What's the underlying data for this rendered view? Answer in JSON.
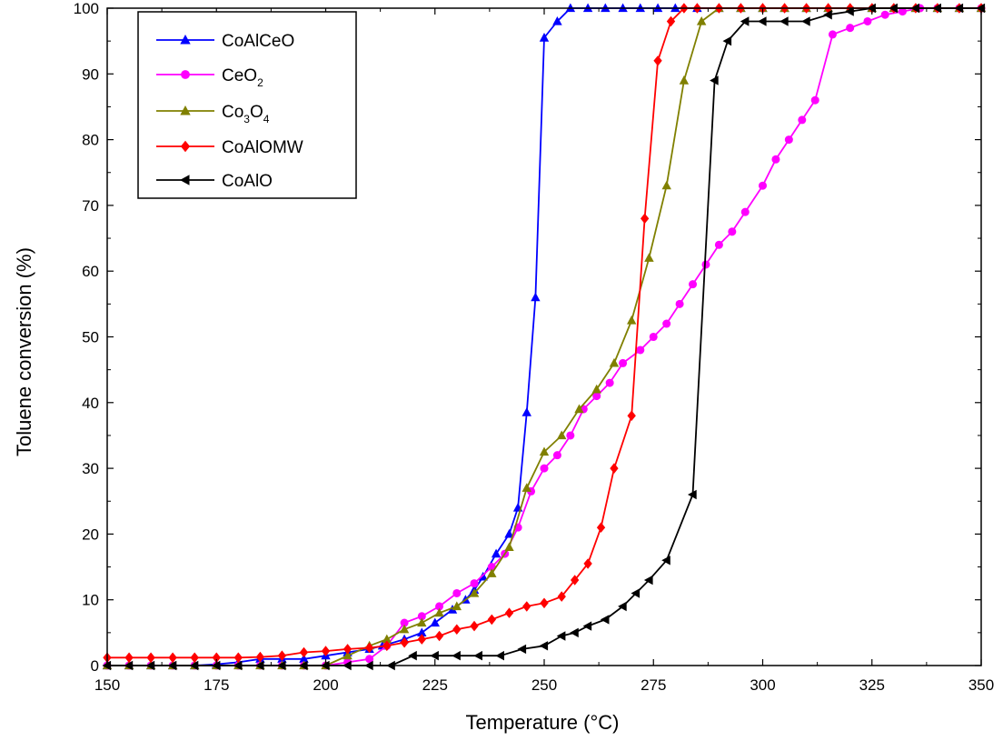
{
  "chart_data": {
    "type": "line",
    "xlabel": "Temperature (°C)",
    "ylabel": "Toluene conversion (%)",
    "xlim": [
      150,
      350
    ],
    "ylim": [
      0,
      100
    ],
    "xticks": [
      150,
      175,
      200,
      225,
      250,
      275,
      300,
      325,
      350
    ],
    "yticks": [
      0,
      10,
      20,
      30,
      40,
      50,
      60,
      70,
      80,
      90,
      100
    ],
    "grid": false,
    "legend_position": "top-left",
    "series": [
      {
        "name": "CoAlCeO",
        "legend_parts": [
          {
            "t": "CoAlCeO",
            "sub": false
          }
        ],
        "color": "#0000ff",
        "marker": "triangle-up",
        "x": [
          150,
          155,
          160,
          165,
          170,
          175,
          180,
          185,
          190,
          195,
          200,
          205,
          210,
          213,
          218,
          222,
          225,
          229,
          232,
          234,
          236,
          239,
          242,
          244,
          246,
          248,
          250,
          253,
          256,
          260,
          264,
          268,
          272,
          276,
          280,
          285,
          290,
          295,
          300,
          305,
          310,
          315,
          320,
          325,
          330,
          335,
          340,
          345,
          350
        ],
        "y": [
          0,
          0,
          0,
          0,
          0,
          0.2,
          0.5,
          1,
          1,
          1,
          1.5,
          2,
          2.5,
          3,
          4,
          5,
          6.5,
          8.5,
          10,
          11.5,
          13.5,
          17,
          20,
          24,
          38.5,
          56,
          95.5,
          98,
          100,
          100,
          100,
          100,
          100,
          100,
          100,
          100,
          100,
          100,
          100,
          100,
          100,
          100,
          100,
          100,
          100,
          100,
          100,
          100,
          100
        ]
      },
      {
        "name": "CeO2",
        "legend_parts": [
          {
            "t": "CeO",
            "sub": false
          },
          {
            "t": "2",
            "sub": true
          }
        ],
        "color": "#ff00ff",
        "marker": "circle",
        "x": [
          150,
          155,
          160,
          165,
          170,
          175,
          180,
          185,
          190,
          195,
          200,
          205,
          210,
          214,
          218,
          222,
          226,
          230,
          234,
          238,
          241,
          244,
          247,
          250,
          253,
          256,
          259,
          262,
          265,
          268,
          272,
          275,
          278,
          281,
          284,
          287,
          290,
          293,
          296,
          300,
          303,
          306,
          309,
          312,
          316,
          320,
          324,
          328,
          332,
          336,
          340,
          345,
          350
        ],
        "y": [
          0,
          0,
          0,
          0,
          0,
          0,
          0,
          0,
          0,
          0,
          0,
          0.5,
          1,
          3,
          6.5,
          7.5,
          9,
          11,
          12.5,
          15,
          17,
          21,
          26.5,
          30,
          32,
          35,
          39,
          41,
          43,
          46,
          48,
          50,
          52,
          55,
          58,
          61,
          64,
          66,
          69,
          73,
          77,
          80,
          83,
          86,
          96,
          97,
          98,
          99,
          99.5,
          100,
          100,
          100,
          100
        ]
      },
      {
        "name": "Co3O4",
        "legend_parts": [
          {
            "t": "Co",
            "sub": false
          },
          {
            "t": "3",
            "sub": true
          },
          {
            "t": "O",
            "sub": false
          },
          {
            "t": "4",
            "sub": true
          }
        ],
        "color": "#808000",
        "marker": "triangle-up",
        "x": [
          150,
          155,
          160,
          165,
          170,
          175,
          180,
          185,
          190,
          195,
          200,
          205,
          210,
          214,
          218,
          222,
          226,
          230,
          234,
          238,
          242,
          246,
          250,
          254,
          258,
          262,
          266,
          270,
          274,
          278,
          282,
          286,
          290,
          295,
          300,
          305,
          310,
          315,
          320,
          325,
          330,
          335,
          340,
          345,
          350
        ],
        "y": [
          0,
          0,
          0,
          0,
          0,
          0,
          0,
          0,
          0,
          0,
          0,
          1.5,
          3,
          4,
          5.5,
          6.5,
          8,
          9,
          11,
          14,
          18,
          27,
          32.5,
          35,
          39,
          42,
          46,
          52.5,
          62,
          73,
          89,
          98,
          100,
          100,
          100,
          100,
          100,
          100,
          100,
          100,
          100,
          100,
          100,
          100,
          100
        ]
      },
      {
        "name": "CoAlOMW",
        "legend_parts": [
          {
            "t": "CoAlOMW",
            "sub": false
          }
        ],
        "color": "#ff0000",
        "marker": "diamond",
        "x": [
          150,
          155,
          160,
          165,
          170,
          175,
          180,
          185,
          190,
          195,
          200,
          205,
          210,
          214,
          218,
          222,
          226,
          230,
          234,
          238,
          242,
          246,
          250,
          254,
          257,
          260,
          263,
          266,
          270,
          273,
          276,
          279,
          282,
          285,
          290,
          295,
          300,
          305,
          310,
          315,
          320,
          325,
          330,
          335,
          340,
          345,
          350
        ],
        "y": [
          1.2,
          1.2,
          1.2,
          1.2,
          1.2,
          1.2,
          1.2,
          1.3,
          1.5,
          2,
          2.2,
          2.5,
          2.7,
          3,
          3.5,
          4,
          4.5,
          5.5,
          6,
          7,
          8,
          9,
          9.5,
          10.5,
          13,
          15.5,
          21,
          30,
          38,
          68,
          92,
          98,
          100,
          100,
          100,
          100,
          100,
          100,
          100,
          100,
          100,
          100,
          100,
          100,
          100,
          100,
          100
        ]
      },
      {
        "name": "CoAlO",
        "legend_parts": [
          {
            "t": "CoAlO",
            "sub": false
          }
        ],
        "color": "#000000",
        "marker": "triangle-left",
        "x": [
          150,
          155,
          160,
          165,
          170,
          175,
          180,
          185,
          190,
          195,
          200,
          205,
          210,
          215,
          220,
          225,
          230,
          235,
          240,
          245,
          250,
          254,
          257,
          260,
          264,
          268,
          271,
          274,
          278,
          284,
          289,
          292,
          296,
          300,
          305,
          310,
          315,
          320,
          325,
          330,
          335,
          340,
          345,
          350
        ],
        "y": [
          0,
          0,
          0,
          0,
          0,
          0,
          0,
          0,
          0,
          0,
          0,
          0,
          0,
          0,
          1.5,
          1.5,
          1.5,
          1.5,
          1.5,
          2.5,
          3,
          4.5,
          5,
          6,
          7,
          9,
          11,
          13,
          16,
          26,
          89,
          95,
          98,
          98,
          98,
          98,
          99,
          99.5,
          100,
          100,
          100,
          100,
          100,
          100
        ]
      }
    ]
  }
}
